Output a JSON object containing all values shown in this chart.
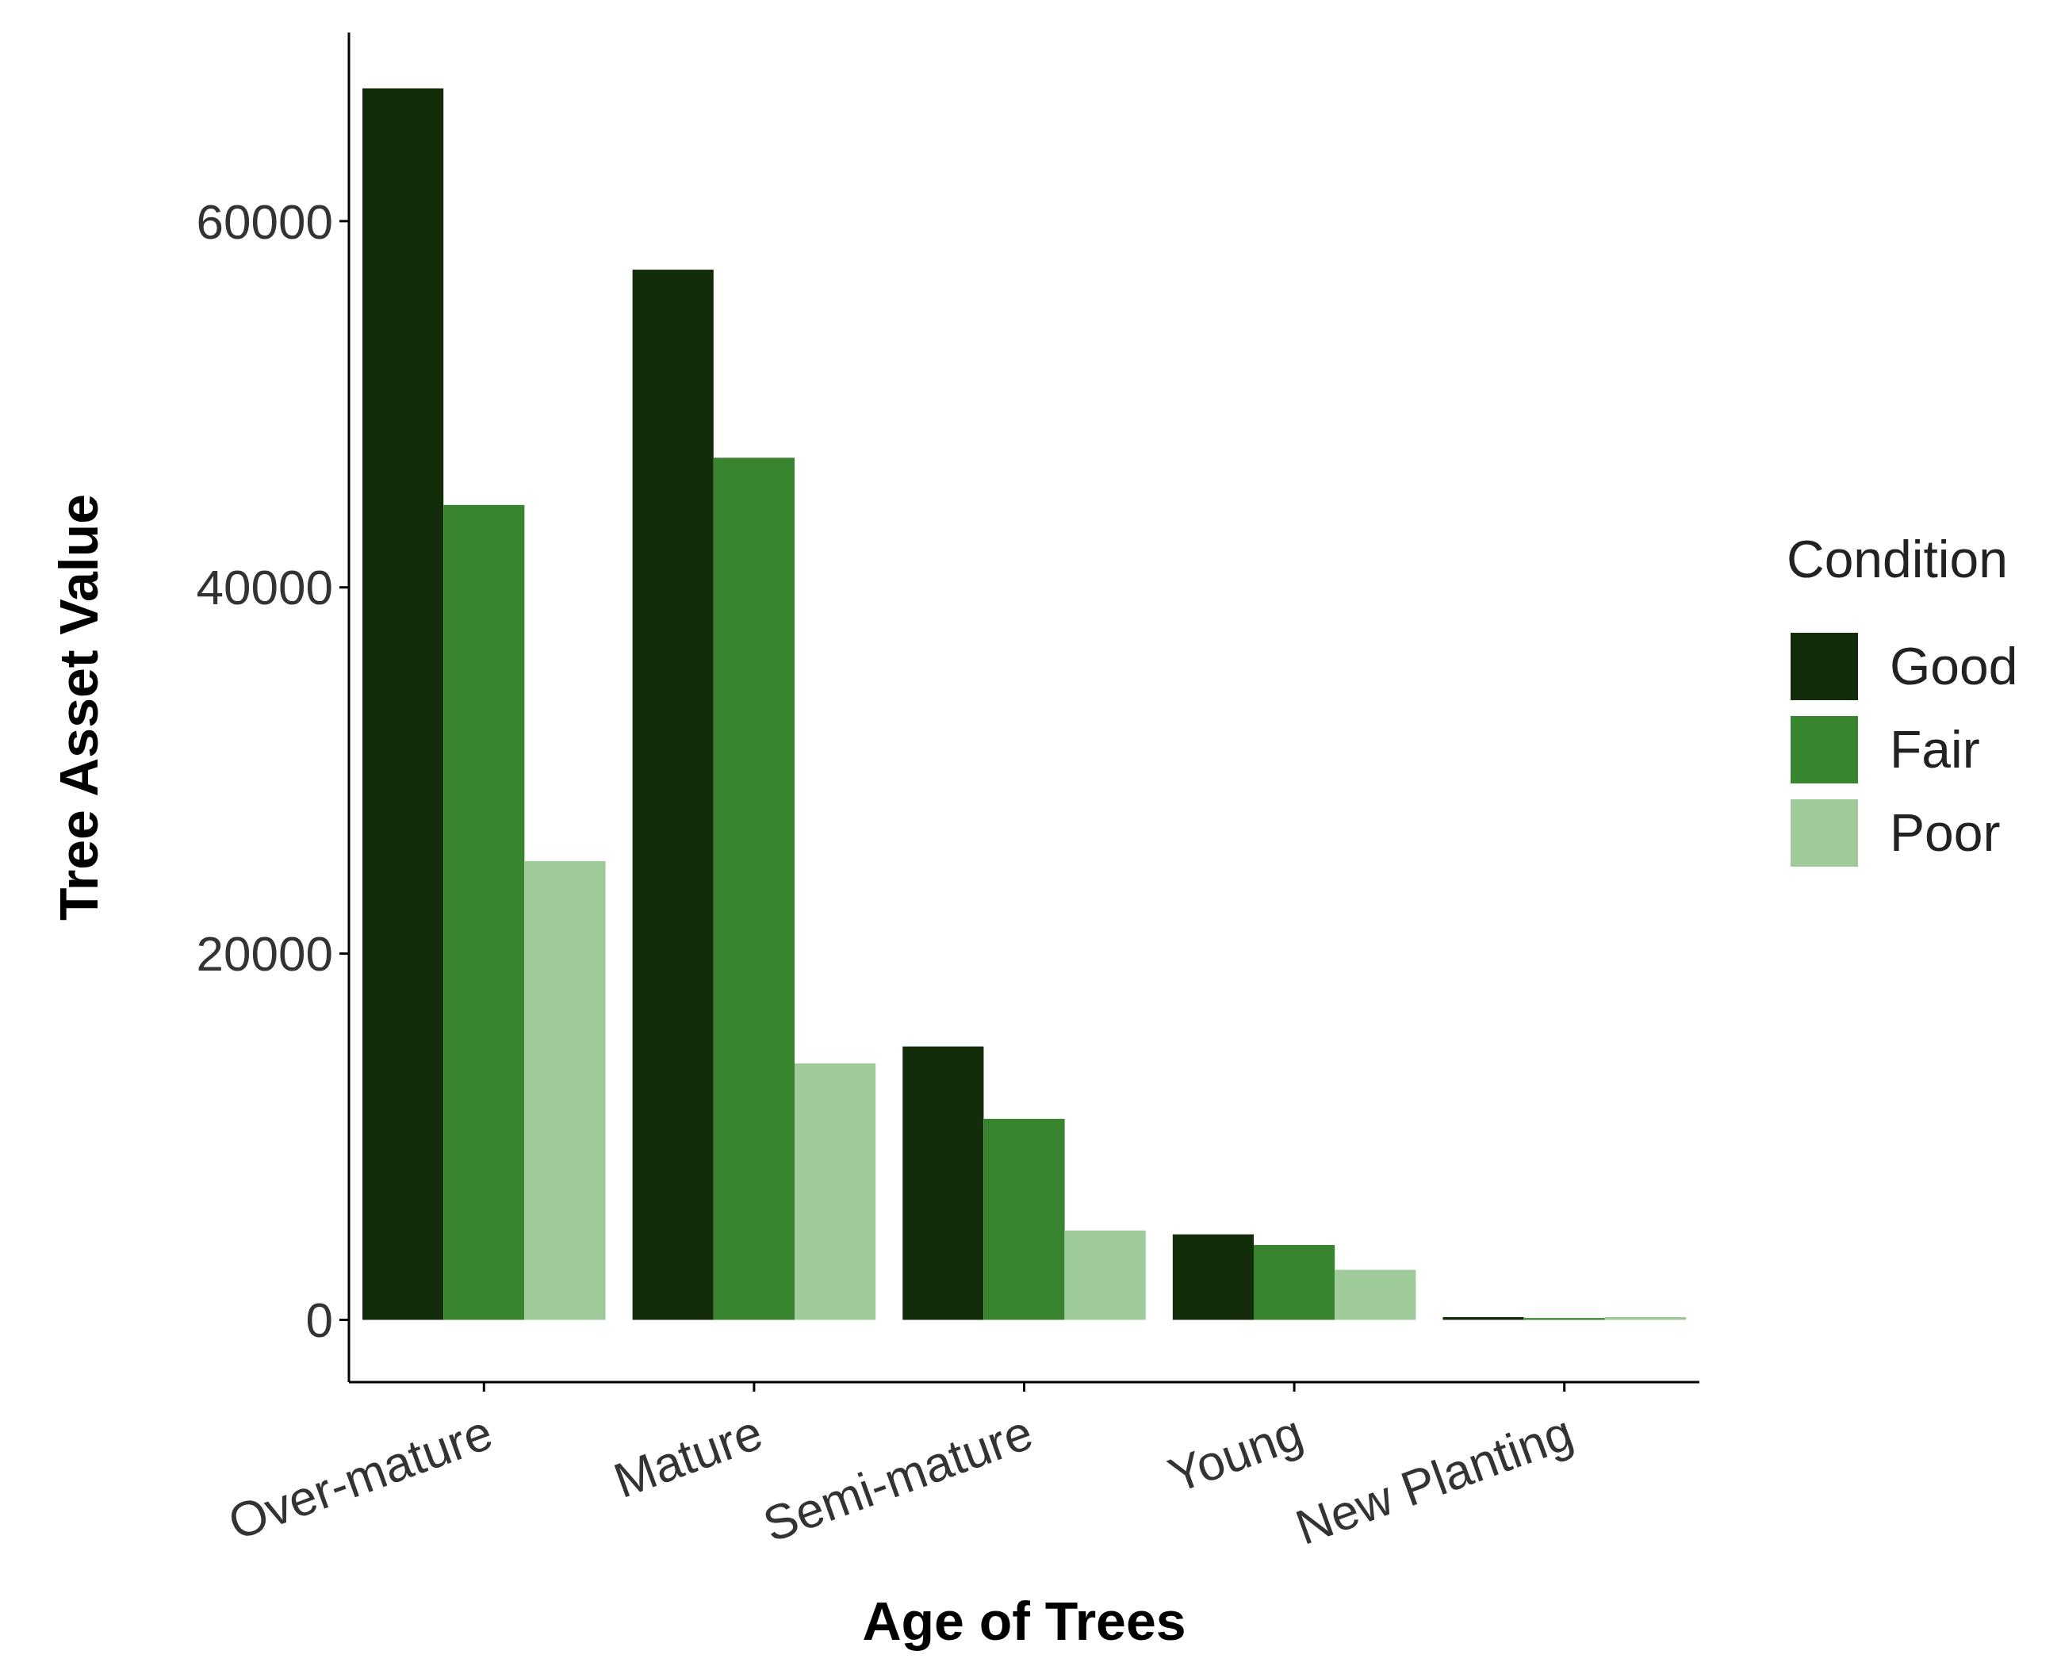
{
  "chart_data": {
    "type": "bar",
    "xlabel": "Age of Trees",
    "ylabel": "Tree Asset Value",
    "legend_title": "Condition",
    "legend": "right",
    "categories": [
      "Over-mature",
      "Mature",
      "Semi-mature",
      "Young",
      "New Planting"
    ],
    "series": [
      {
        "name": "Good",
        "color": "#132d0a",
        "values": [
          67250,
          57350,
          14930,
          4670,
          150
        ]
      },
      {
        "name": "Fair",
        "color": "#38842f",
        "values": [
          44500,
          47080,
          10980,
          4090,
          100
        ]
      },
      {
        "name": "Poor",
        "color": "#9ecb99",
        "values": [
          25050,
          14000,
          4880,
          2730,
          150
        ]
      }
    ],
    "ylim": [
      -3400,
      70300
    ],
    "yticks": [
      0,
      20000,
      40000,
      60000
    ],
    "grid": false
  }
}
